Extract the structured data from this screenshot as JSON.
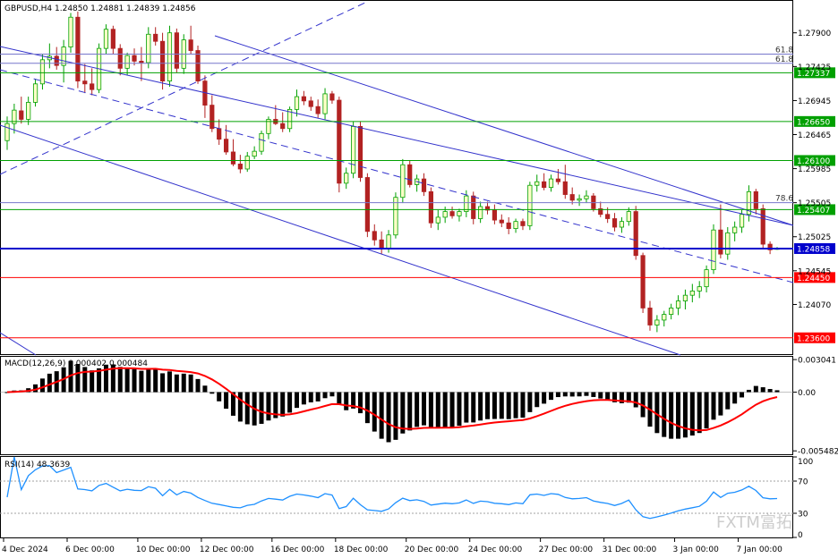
{
  "chart_data": {
    "type": "candlestick",
    "symbol_header": "GBPUSD,H4  1.24850 1.24881 1.24839 1.24856",
    "y_ticks": [
      "1.27900",
      "1.27425",
      "1.26945",
      "1.26465",
      "1.25985",
      "1.25505",
      "1.25025",
      "1.24545",
      "1.24070"
    ],
    "x_ticks": [
      "4 Dec 2024",
      "6 Dec 00:00",
      "10 Dec 00:00",
      "12 Dec 00:00",
      "16 Dec 00:00",
      "18 Dec 00:00",
      "20 Dec 00:00",
      "24 Dec 00:00",
      "27 Dec 00:00",
      "31 Dec 00:00",
      "3 Jan 00:00",
      "7 Jan 00:00"
    ],
    "ylim": [
      1.2337,
      1.2835
    ],
    "candles": [
      [
        1.2638,
        1.2672,
        1.2625,
        1.2662
      ],
      [
        1.2662,
        1.269,
        1.2648,
        1.2681
      ],
      [
        1.268,
        1.27,
        1.2662,
        1.2668
      ],
      [
        1.2668,
        1.27,
        1.266,
        1.2692
      ],
      [
        1.2692,
        1.2725,
        1.2686,
        1.2718
      ],
      [
        1.2718,
        1.276,
        1.271,
        1.2752
      ],
      [
        1.2752,
        1.2775,
        1.274,
        1.2757
      ],
      [
        1.2757,
        1.277,
        1.2738,
        1.2744
      ],
      [
        1.2744,
        1.278,
        1.272,
        1.277
      ],
      [
        1.277,
        1.2818,
        1.2762,
        1.2812
      ],
      [
        1.2812,
        1.282,
        1.2712,
        1.2722
      ],
      [
        1.2722,
        1.2746,
        1.2705,
        1.2718
      ],
      [
        1.2718,
        1.274,
        1.2702,
        1.271
      ],
      [
        1.271,
        1.2775,
        1.2705,
        1.2768
      ],
      [
        1.2768,
        1.2802,
        1.276,
        1.2795
      ],
      [
        1.2795,
        1.28,
        1.276,
        1.2768
      ],
      [
        1.2768,
        1.2774,
        1.273,
        1.274
      ],
      [
        1.274,
        1.2762,
        1.273,
        1.2758
      ],
      [
        1.2758,
        1.2768,
        1.2744,
        1.275
      ],
      [
        1.275,
        1.277,
        1.2722,
        1.2748
      ],
      [
        1.2748,
        1.2798,
        1.274,
        1.2788
      ],
      [
        1.2788,
        1.2798,
        1.2772,
        1.2778
      ],
      [
        1.2778,
        1.279,
        1.271,
        1.2722
      ],
      [
        1.2722,
        1.28,
        1.2714,
        1.279
      ],
      [
        1.279,
        1.2796,
        1.2734,
        1.274
      ],
      [
        1.274,
        1.2788,
        1.2732,
        1.278
      ],
      [
        1.278,
        1.28,
        1.276,
        1.2765
      ],
      [
        1.2765,
        1.2772,
        1.2718,
        1.2722
      ],
      [
        1.2722,
        1.273,
        1.267,
        1.2688
      ],
      [
        1.2688,
        1.2702,
        1.265,
        1.2655
      ],
      [
        1.2655,
        1.2668,
        1.2632,
        1.264
      ],
      [
        1.264,
        1.266,
        1.2618,
        1.2622
      ],
      [
        1.2622,
        1.264,
        1.2602,
        1.2605
      ],
      [
        1.2605,
        1.2618,
        1.2592,
        1.2598
      ],
      [
        1.2598,
        1.2622,
        1.2594,
        1.2616
      ],
      [
        1.2616,
        1.263,
        1.2612,
        1.2623
      ],
      [
        1.2623,
        1.2652,
        1.2618,
        1.2648
      ],
      [
        1.2648,
        1.2672,
        1.264,
        1.2668
      ],
      [
        1.2668,
        1.2688,
        1.266,
        1.2662
      ],
      [
        1.2662,
        1.2678,
        1.265,
        1.2655
      ],
      [
        1.2655,
        1.2686,
        1.265,
        1.2682
      ],
      [
        1.2682,
        1.271,
        1.2672,
        1.27
      ],
      [
        1.27,
        1.2708,
        1.2688,
        1.2694
      ],
      [
        1.2694,
        1.27,
        1.268,
        1.2686
      ],
      [
        1.2686,
        1.2696,
        1.267,
        1.2676
      ],
      [
        1.2676,
        1.2712,
        1.2668,
        1.2704
      ],
      [
        1.2704,
        1.2708,
        1.269,
        1.2695
      ],
      [
        1.2695,
        1.27,
        1.2565,
        1.2578
      ],
      [
        1.2578,
        1.26,
        1.257,
        1.2592
      ],
      [
        1.2592,
        1.2665,
        1.2585,
        1.2658
      ],
      [
        1.2658,
        1.2665,
        1.258,
        1.2586
      ],
      [
        1.2586,
        1.2592,
        1.2502,
        1.251
      ],
      [
        1.251,
        1.252,
        1.249,
        1.2498
      ],
      [
        1.2498,
        1.251,
        1.2478,
        1.2486
      ],
      [
        1.2486,
        1.2512,
        1.248,
        1.2505
      ],
      [
        1.2505,
        1.2565,
        1.25,
        1.2558
      ],
      [
        1.2558,
        1.2612,
        1.255,
        1.2604
      ],
      [
        1.2604,
        1.261,
        1.2572,
        1.2576
      ],
      [
        1.2576,
        1.259,
        1.2566,
        1.2584
      ],
      [
        1.2584,
        1.2592,
        1.256,
        1.2566
      ],
      [
        1.2566,
        1.2572,
        1.2515,
        1.2522
      ],
      [
        1.2522,
        1.254,
        1.2512,
        1.253
      ],
      [
        1.253,
        1.2545,
        1.2522,
        1.2538
      ],
      [
        1.2538,
        1.2545,
        1.2528,
        1.2532
      ],
      [
        1.2532,
        1.2542,
        1.2524,
        1.2538
      ],
      [
        1.2538,
        1.2568,
        1.253,
        1.256
      ],
      [
        1.256,
        1.2566,
        1.252,
        1.2528
      ],
      [
        1.2528,
        1.2552,
        1.2522,
        1.2545
      ],
      [
        1.2545,
        1.2552,
        1.2534,
        1.254
      ],
      [
        1.254,
        1.2548,
        1.252,
        1.2526
      ],
      [
        1.2526,
        1.2534,
        1.2516,
        1.2522
      ],
      [
        1.2522,
        1.253,
        1.2506,
        1.2514
      ],
      [
        1.2514,
        1.2528,
        1.2508,
        1.2524
      ],
      [
        1.2524,
        1.2528,
        1.2512,
        1.2518
      ],
      [
        1.2518,
        1.258,
        1.2512,
        1.2575
      ],
      [
        1.2575,
        1.259,
        1.2566,
        1.258
      ],
      [
        1.258,
        1.2592,
        1.2568,
        1.2572
      ],
      [
        1.2572,
        1.259,
        1.2566,
        1.2584
      ],
      [
        1.2584,
        1.2598,
        1.2576,
        1.258
      ],
      [
        1.258,
        1.2604,
        1.2556,
        1.2562
      ],
      [
        1.2562,
        1.2572,
        1.2548,
        1.2554
      ],
      [
        1.2554,
        1.2562,
        1.2546,
        1.2556
      ],
      [
        1.2556,
        1.2568,
        1.255,
        1.256
      ],
      [
        1.256,
        1.2564,
        1.2538,
        1.2542
      ],
      [
        1.2542,
        1.2552,
        1.253,
        1.2534
      ],
      [
        1.2534,
        1.2544,
        1.2522,
        1.2528
      ],
      [
        1.2528,
        1.2536,
        1.251,
        1.2516
      ],
      [
        1.2516,
        1.253,
        1.2508,
        1.2524
      ],
      [
        1.2524,
        1.2544,
        1.2518,
        1.2538
      ],
      [
        1.2538,
        1.2546,
        1.247,
        1.2476
      ],
      [
        1.2476,
        1.248,
        1.2395,
        1.2402
      ],
      [
        1.2402,
        1.2412,
        1.237,
        1.2378
      ],
      [
        1.2378,
        1.2392,
        1.2368,
        1.2385
      ],
      [
        1.2385,
        1.2398,
        1.2376,
        1.2393
      ],
      [
        1.2393,
        1.2408,
        1.2386,
        1.2402
      ],
      [
        1.2402,
        1.242,
        1.2392,
        1.2412
      ],
      [
        1.2412,
        1.2428,
        1.24,
        1.242
      ],
      [
        1.242,
        1.2436,
        1.241,
        1.2426
      ],
      [
        1.2426,
        1.244,
        1.2416,
        1.2432
      ],
      [
        1.2432,
        1.2462,
        1.2424,
        1.2456
      ],
      [
        1.2456,
        1.252,
        1.245,
        1.2512
      ],
      [
        1.2512,
        1.2548,
        1.2472,
        1.2478
      ],
      [
        1.2478,
        1.2516,
        1.247,
        1.2508
      ],
      [
        1.2508,
        1.2524,
        1.2496,
        1.2516
      ],
      [
        1.2516,
        1.254,
        1.2508,
        1.2534
      ],
      [
        1.2534,
        1.2575,
        1.2524,
        1.2566
      ],
      [
        1.2566,
        1.257,
        1.2534,
        1.2542
      ],
      [
        1.2542,
        1.2548,
        1.2486,
        1.2492
      ],
      [
        1.2492,
        1.2496,
        1.2478,
        1.2484
      ],
      [
        1.2485,
        1.2488,
        1.2484,
        1.2486
      ]
    ],
    "hlines": [
      {
        "price": 1.27337,
        "label": "1.27337",
        "color": "#00a000"
      },
      {
        "price": 1.2665,
        "label": "1.26650",
        "color": "#00a000"
      },
      {
        "price": 1.261,
        "label": "1.26100",
        "color": "#00a000"
      },
      {
        "price": 1.25407,
        "label": "1.25407",
        "color": "#00a000"
      },
      {
        "price": 1.24858,
        "label": "1.24858",
        "color": "#0000cc"
      },
      {
        "price": 1.2445,
        "label": "1.24450",
        "color": "#ff0000"
      },
      {
        "price": 1.236,
        "label": "1.23600",
        "color": "#ff0000"
      }
    ],
    "fib_lines": [
      {
        "price": 1.276,
        "label": "61.8"
      },
      {
        "price": 1.2747,
        "label": "61.8"
      },
      {
        "price": 1.25505,
        "label": "78.6"
      }
    ],
    "macd": {
      "label": "MACD(12,26,9) 0.000402 0.000484",
      "y_ticks": [
        "0.003041",
        "0.00",
        "-0.005482"
      ],
      "ylim": [
        -0.0058,
        0.0033
      ]
    },
    "rsi": {
      "label": "RSI(14) 48.3639",
      "y_ticks": [
        "100",
        "70",
        "30",
        "0"
      ],
      "ylim": [
        0,
        100
      ]
    },
    "watermark": "FXTM富拓",
    "colors": {
      "bull_body": "#ffffc8",
      "bull_edge": "#00a000",
      "bear_body": "#b22222",
      "channel": "#3333cc",
      "macd_hist": "#000000",
      "macd_signal": "#ff0000",
      "rsi_line": "#1e90ff",
      "rsi_levels": "#a0a0a0"
    }
  }
}
